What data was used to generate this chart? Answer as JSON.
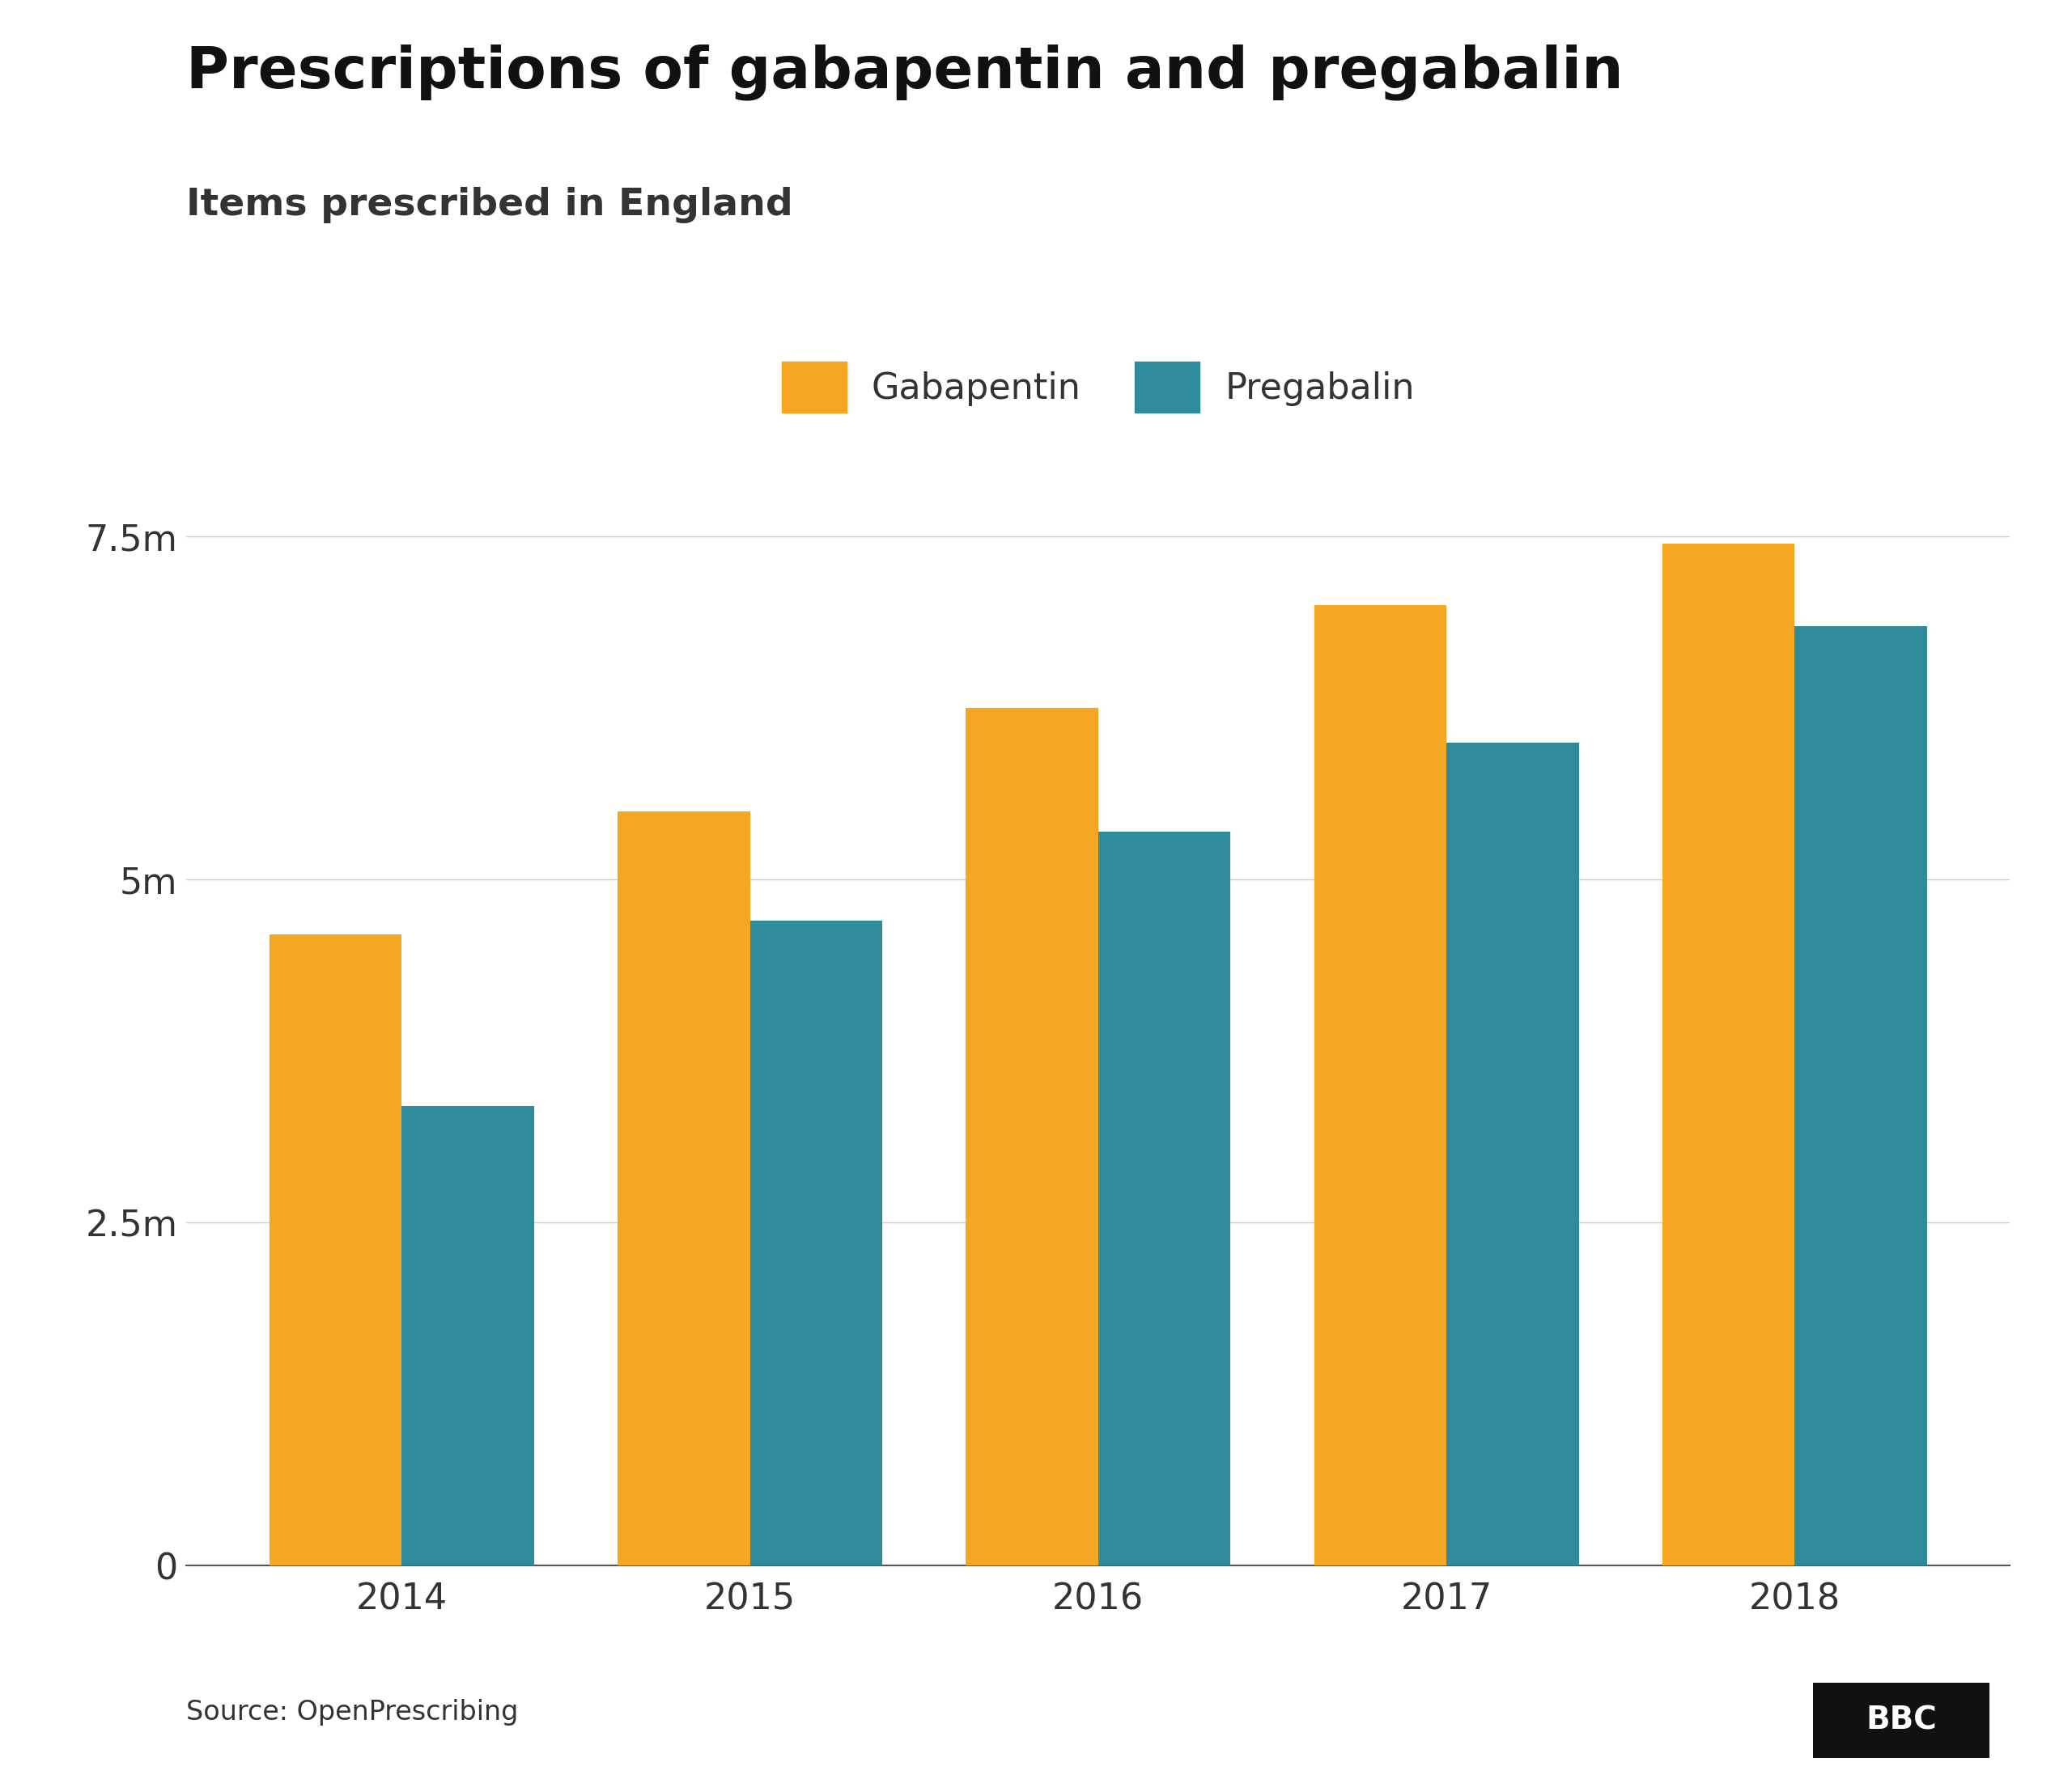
{
  "title": "Prescriptions of gabapentin and pregabalin",
  "subtitle": "Items prescribed in England",
  "years": [
    2014,
    2015,
    2016,
    2017,
    2018
  ],
  "gabapentin": [
    4600000,
    5500000,
    6250000,
    7000000,
    7450000
  ],
  "pregabalin": [
    3350000,
    4700000,
    5350000,
    6000000,
    6850000
  ],
  "gabapentin_color": "#F5A623",
  "pregabalin_color": "#2E8B9A",
  "background_color": "#FFFFFF",
  "title_fontsize": 52,
  "subtitle_fontsize": 34,
  "legend_fontsize": 32,
  "tick_fontsize": 32,
  "source_fontsize": 24,
  "yticks": [
    0,
    2500000,
    5000000,
    7500000
  ],
  "ytick_labels": [
    "0",
    "2.5m",
    "5m",
    "7.5m"
  ],
  "ylim": [
    0,
    8300000
  ],
  "bar_width": 0.38,
  "source_text": "Source: OpenPrescribing",
  "bbc_text": "BBC"
}
